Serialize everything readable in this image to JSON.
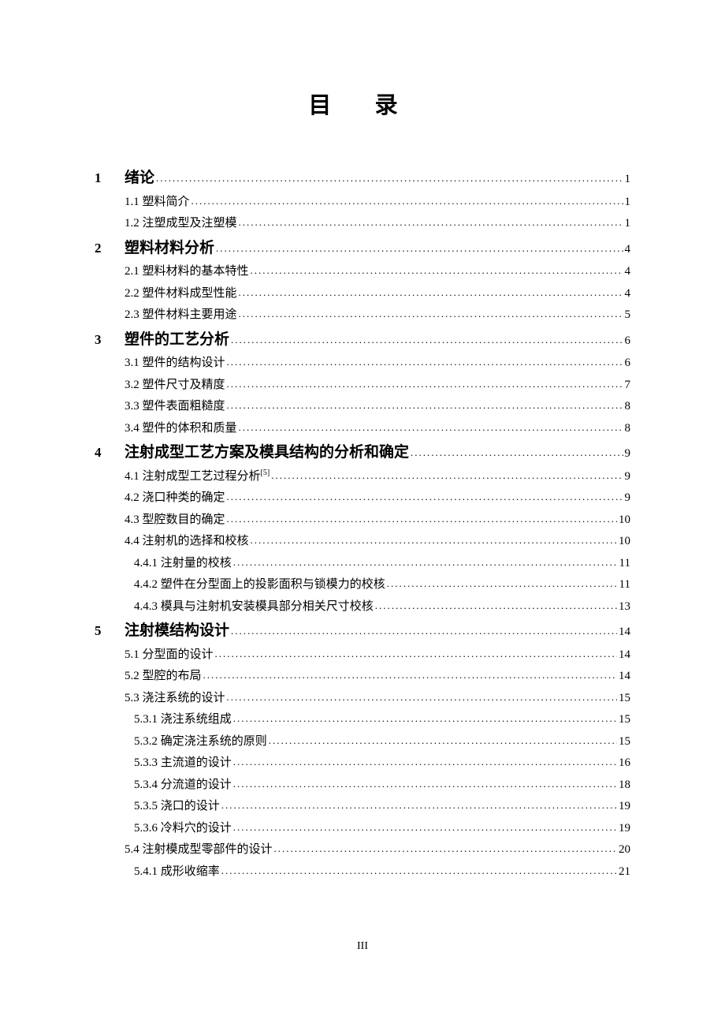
{
  "title": "目 录",
  "footer": "III",
  "leader_char": "..........................................................................................................................................................",
  "entries": [
    {
      "level": 1,
      "num": "1",
      "label": "绪论",
      "page": "1"
    },
    {
      "level": 2,
      "num": "",
      "label": "1.1 塑料简介",
      "page": "1"
    },
    {
      "level": 2,
      "num": "",
      "label": "1.2 注塑成型及注塑模",
      "page": "1"
    },
    {
      "level": 1,
      "num": "2",
      "label": "塑料材料分析",
      "page": "4"
    },
    {
      "level": 2,
      "num": "",
      "label": "2.1 塑料材料的基本特性",
      "page": "4"
    },
    {
      "level": 2,
      "num": "",
      "label": "2.2 塑件材料成型性能",
      "page": "4"
    },
    {
      "level": 2,
      "num": "",
      "label": "2.3 塑件材料主要用途",
      "page": "5"
    },
    {
      "level": 1,
      "num": "3",
      "label": "塑件的工艺分析",
      "page": "6"
    },
    {
      "level": 2,
      "num": "",
      "label": "3.1 塑件的结构设计",
      "page": "6"
    },
    {
      "level": 2,
      "num": "",
      "label": "3.2 塑件尺寸及精度",
      "page": "7"
    },
    {
      "level": 2,
      "num": "",
      "label": "3.3 塑件表面粗糙度",
      "page": "8"
    },
    {
      "level": 2,
      "num": "",
      "label": "3.4 塑件的体积和质量",
      "page": "8"
    },
    {
      "level": 1,
      "num": "4",
      "label": "注射成型工艺方案及模具结构的分析和确定",
      "page": "9"
    },
    {
      "level": 2,
      "num": "",
      "label": "4.1 注射成型工艺过程分析",
      "sup": "[5]",
      "page": "9"
    },
    {
      "level": 2,
      "num": "",
      "label": "4.2 浇口种类的确定",
      "page": "9"
    },
    {
      "level": 2,
      "num": "",
      "label": "4.3 型腔数目的确定",
      "page": "10"
    },
    {
      "level": 2,
      "num": "",
      "label": "4.4 注射机的选择和校核",
      "page": "10"
    },
    {
      "level": 3,
      "num": "",
      "label": "4.4.1 注射量的校核",
      "page": "11"
    },
    {
      "level": 3,
      "num": "",
      "label": "4.4.2 塑件在分型面上的投影面积与锁模力的校核",
      "page": "11"
    },
    {
      "level": 3,
      "num": "",
      "label": "4.4.3 模具与注射机安装模具部分相关尺寸校核",
      "page": "13"
    },
    {
      "level": 1,
      "num": "5",
      "label": "注射模结构设计",
      "page": "14"
    },
    {
      "level": 2,
      "num": "",
      "label": "5.1 分型面的设计",
      "page": "14"
    },
    {
      "level": 2,
      "num": "",
      "label": "5.2 型腔的布局",
      "page": "14"
    },
    {
      "level": 2,
      "num": "",
      "label": "5.3 浇注系统的设计",
      "page": "15"
    },
    {
      "level": 3,
      "num": "",
      "label": "5.3.1 浇注系统组成",
      "page": "15"
    },
    {
      "level": 3,
      "num": "",
      "label": "5.3.2 确定浇注系统的原则",
      "page": "15"
    },
    {
      "level": 3,
      "num": "",
      "label": "5.3.3 主流道的设计",
      "page": "16"
    },
    {
      "level": 3,
      "num": "",
      "label": "5.3.4 分流道的设计",
      "page": "18"
    },
    {
      "level": 3,
      "num": "",
      "label": "5.3.5 浇口的设计",
      "page": "19"
    },
    {
      "level": 3,
      "num": "",
      "label": "5.3.6 冷料穴的设计",
      "page": "19"
    },
    {
      "level": 2,
      "num": "",
      "label": "5.4 注射模成型零部件的设计",
      "page": "20"
    },
    {
      "level": 3,
      "num": "",
      "label": "5.4.1 成形收缩率",
      "page": "21"
    }
  ]
}
